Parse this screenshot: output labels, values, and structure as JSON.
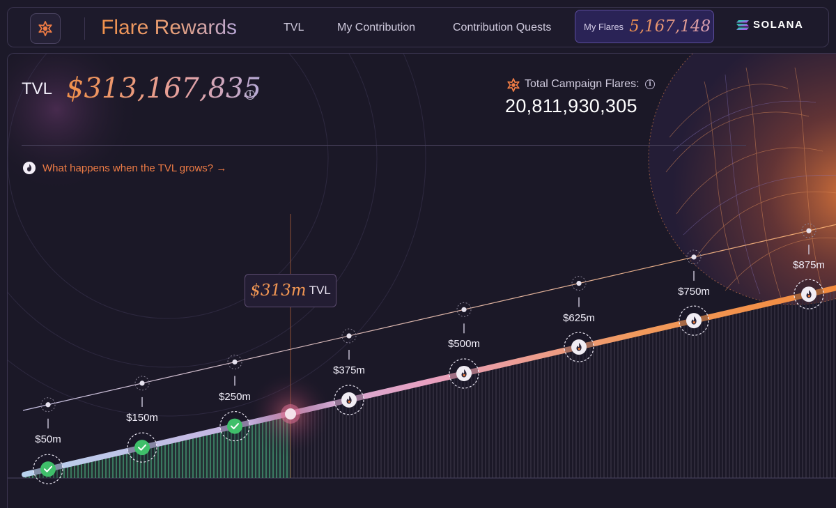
{
  "header": {
    "brand": "Flare Rewards",
    "nav": [
      {
        "label": "TVL"
      },
      {
        "label": "My Contribution"
      },
      {
        "label": "Contribution Quests"
      }
    ],
    "my_flares_label": "My Flares",
    "my_flares_value": "5,167,148",
    "partner": "SOLANA"
  },
  "stats": {
    "tvl_label": "TVL",
    "tvl_value": "$313,167,835",
    "campaign_label": "Total Campaign Flares:",
    "campaign_value": "20,811,930,305"
  },
  "grow_link": "What happens when the TVL grows? →",
  "current_tag": {
    "value": "$313m",
    "unit": "TVL"
  },
  "milestones": [
    {
      "label": "$50m",
      "status": "completed"
    },
    {
      "label": "$150m",
      "status": "completed"
    },
    {
      "label": "$250m",
      "status": "completed"
    },
    {
      "label": "$375m",
      "status": "locked"
    },
    {
      "label": "$500m",
      "status": "locked"
    },
    {
      "label": "$625m",
      "status": "locked"
    },
    {
      "label": "$750m",
      "status": "locked"
    },
    {
      "label": "$875m",
      "status": "locked"
    }
  ],
  "colors": {
    "accent_orange": "#f0904a",
    "accent_purple": "#2a2356",
    "completed_green": "#3fbf6a",
    "background": "#1c1929"
  },
  "icons": {
    "logo": "flare-star-icon",
    "info": "info-icon",
    "grow": "flame-icon",
    "completed": "check-icon",
    "locked": "flame-icon"
  }
}
